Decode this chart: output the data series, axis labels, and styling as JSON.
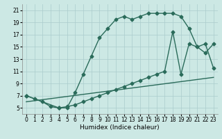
{
  "xlabel": "Humidex (Indice chaleur)",
  "background_color": "#cce8e4",
  "grid_color": "#aacccc",
  "line_color": "#2a6b5a",
  "xlim": [
    -0.5,
    23.5
  ],
  "ylim": [
    4.0,
    22.0
  ],
  "xticks": [
    0,
    1,
    2,
    3,
    4,
    5,
    6,
    7,
    8,
    9,
    10,
    11,
    12,
    13,
    14,
    15,
    16,
    17,
    18,
    19,
    20,
    21,
    22,
    23
  ],
  "yticks": [
    5,
    7,
    9,
    11,
    13,
    15,
    17,
    19,
    21
  ],
  "line1_x": [
    0,
    1,
    2,
    3,
    4,
    4,
    5,
    6,
    7,
    8,
    9,
    10,
    11,
    12,
    13,
    14,
    15,
    16,
    17,
    18,
    19,
    20,
    21,
    22,
    23
  ],
  "line1_y": [
    7,
    6.5,
    6.0,
    5.2,
    5.0,
    5.0,
    5.0,
    7.5,
    10.5,
    13.5,
    16.5,
    18.0,
    19.5,
    20.0,
    19.5,
    20.0,
    20.5,
    20.5,
    20.5,
    20.5,
    20.0,
    18.0,
    15.0,
    14.0,
    15.5
  ],
  "line2_x": [
    0,
    4,
    5,
    6,
    7,
    8,
    9,
    10,
    11,
    12,
    13,
    14,
    15,
    16,
    17,
    18,
    19,
    20,
    21,
    22,
    23
  ],
  "line2_y": [
    7,
    5.0,
    5.2,
    5.5,
    6.0,
    6.5,
    7.0,
    7.5,
    8.0,
    8.5,
    9.0,
    9.5,
    10.0,
    10.5,
    11.0,
    17.5,
    10.5,
    15.5,
    15.0,
    15.5,
    11.5
  ],
  "line3_x": [
    0,
    23
  ],
  "line3_y": [
    6.0,
    10.0
  ],
  "marker": "D",
  "markersize": 2.5,
  "linewidth": 1.0,
  "axis_fontsize": 6.5,
  "tick_fontsize": 5.5
}
